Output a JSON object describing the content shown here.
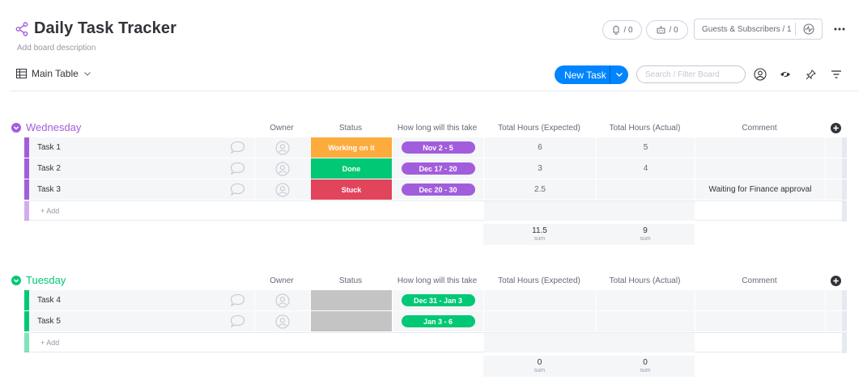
{
  "board": {
    "title": "Daily Task Tracker",
    "description": "Add board description"
  },
  "header": {
    "activity_count": "/ 0",
    "integrations_count": "/ 0",
    "guests_label": "Guests & Subscribers / 1"
  },
  "view": {
    "tab_label": "Main Table"
  },
  "toolbar": {
    "new_task_label": "New Task",
    "search_placeholder": "Search / Filter Board"
  },
  "columns": {
    "owner": "Owner",
    "status": "Status",
    "timeline": "How long will this take",
    "expected": "Total Hours (Expected)",
    "actual": "Total Hours (Actual)",
    "comment": "Comment"
  },
  "add_label": "+ Add",
  "sum_label": "sum",
  "colors": {
    "wednesday": "#a25ddc",
    "tuesday": "#00c875",
    "working": "#fdab3d",
    "done": "#00c875",
    "stuck": "#e2445c",
    "empty": "#c4c4c4",
    "primary": "#0085ff"
  },
  "groups": {
    "wednesday": {
      "name": "Wednesday",
      "rows": [
        {
          "name": "Task 1",
          "status": "Working on it",
          "timeline": "Nov 2 - 5",
          "expected": "6",
          "actual": "5",
          "comment": ""
        },
        {
          "name": "Task 2",
          "status": "Done",
          "timeline": "Dec 17 - 20",
          "expected": "3",
          "actual": "4",
          "comment": ""
        },
        {
          "name": "Task 3",
          "status": "Stuck",
          "timeline": "Dec 20 - 30",
          "expected": "2.5",
          "actual": "",
          "comment": "Waiting for Finance approval"
        }
      ],
      "sum_expected": "11.5",
      "sum_actual": "9"
    },
    "tuesday": {
      "name": "Tuesday",
      "rows": [
        {
          "name": "Task 4",
          "status": "",
          "timeline": "Dec 31 - Jan 3",
          "expected": "",
          "actual": "",
          "comment": ""
        },
        {
          "name": "Task 5",
          "status": "",
          "timeline": "Jan 3 - 6",
          "expected": "",
          "actual": "",
          "comment": ""
        }
      ],
      "sum_expected": "0",
      "sum_actual": "0"
    }
  }
}
